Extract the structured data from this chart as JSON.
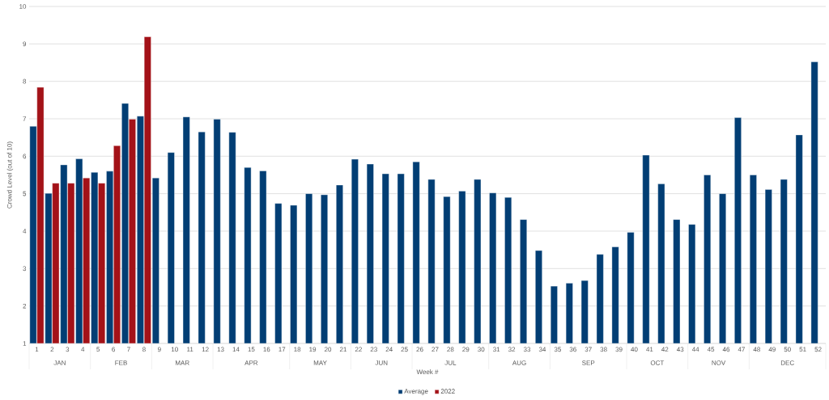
{
  "chart_data": {
    "type": "bar",
    "xlabel": "Week #",
    "ylabel": "Crowd Level (out of 10)",
    "x": [
      1,
      2,
      3,
      4,
      5,
      6,
      7,
      8,
      9,
      10,
      11,
      12,
      13,
      14,
      15,
      16,
      17,
      18,
      19,
      20,
      21,
      22,
      23,
      24,
      25,
      26,
      27,
      28,
      29,
      30,
      31,
      32,
      33,
      34,
      35,
      36,
      37,
      38,
      39,
      40,
      41,
      42,
      43,
      44,
      45,
      46,
      47,
      48,
      49,
      50,
      51,
      52
    ],
    "series": [
      {
        "name": "Average",
        "color": "#023e74",
        "values": [
          6.8,
          5.01,
          5.77,
          5.93,
          5.57,
          5.6,
          7.41,
          7.07,
          5.42,
          6.1,
          7.05,
          6.65,
          6.99,
          6.64,
          5.7,
          5.61,
          4.74,
          4.69,
          5.0,
          4.97,
          5.23,
          5.92,
          5.79,
          5.53,
          5.53,
          5.85,
          5.38,
          4.92,
          5.07,
          5.38,
          5.02,
          4.9,
          4.31,
          3.48,
          2.53,
          2.61,
          2.68,
          3.38,
          3.58,
          3.97,
          6.03,
          5.26,
          4.31,
          4.18,
          5.5,
          5.0,
          7.03,
          5.5,
          5.11,
          5.38,
          6.57,
          8.52
        ]
      },
      {
        "name": "2022",
        "color": "#a31218",
        "x": [
          1,
          2,
          3,
          4,
          5,
          6,
          7,
          8
        ],
        "values": [
          7.84,
          5.28,
          5.28,
          5.42,
          5.28,
          6.28,
          6.99,
          9.19
        ]
      }
    ],
    "xlim": [
      0.5,
      52.5
    ],
    "xticks": [
      1,
      2,
      3,
      4,
      5,
      6,
      7,
      8,
      9,
      10,
      11,
      12,
      13,
      14,
      15,
      16,
      17,
      18,
      19,
      20,
      21,
      22,
      23,
      24,
      25,
      26,
      27,
      28,
      29,
      30,
      31,
      32,
      33,
      34,
      35,
      36,
      37,
      38,
      39,
      40,
      41,
      42,
      43,
      44,
      45,
      46,
      47,
      48,
      49,
      50,
      51,
      52
    ],
    "ylim": [
      1,
      10
    ],
    "yticks": [
      1,
      2,
      3,
      4,
      5,
      6,
      7,
      8,
      9,
      10
    ],
    "annotations": [
      "JAN",
      "FEB",
      "MAR",
      "APR",
      "MAY",
      "JUN",
      "JUL",
      "AUG",
      "SEP",
      "OCT",
      "NOV",
      "DEC"
    ],
    "grid": "y",
    "legend": "bottom"
  }
}
